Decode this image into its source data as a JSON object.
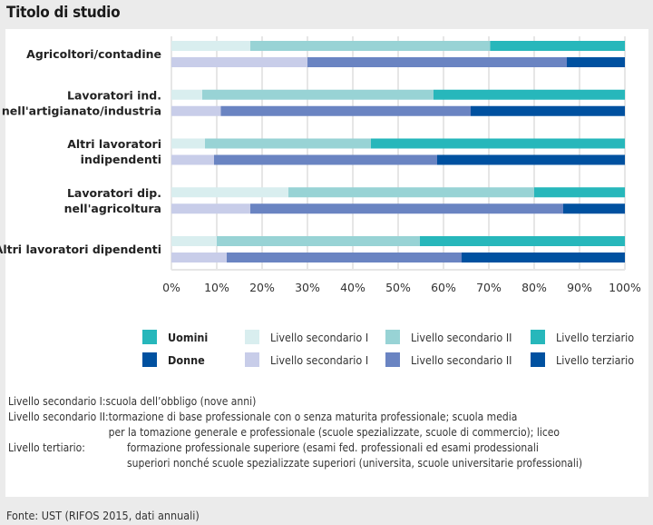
{
  "title": "Titolo di studio",
  "chart_data": {
    "type": "bar",
    "orientation": "horizontal",
    "stacked": true,
    "normalized": true,
    "categories": [
      "Agricoltori/contadine",
      "Lavoratori ind.\nnell'artigianato/industria",
      "Altri lavoratori\nindipendenti",
      "Lavoratori dip.\nnell'agricoltura",
      "Altri lavoratori dipendenti"
    ],
    "groups": [
      "Uomini",
      "Donne"
    ],
    "levels": [
      "Livello secondario I",
      "Livello secondario II",
      "Livello terziario"
    ],
    "series": [
      {
        "name": "Uomini - Livello secondario I",
        "group": "Uomini",
        "level": "Livello secondario I",
        "values": [
          17.4,
          6.8,
          7.4,
          25.8,
          10.0
        ]
      },
      {
        "name": "Uomini - Livello secondario II",
        "group": "Uomini",
        "level": "Livello secondario II",
        "values": [
          52.9,
          51.0,
          36.6,
          54.2,
          44.8
        ]
      },
      {
        "name": "Uomini - Livello terziario",
        "group": "Uomini",
        "level": "Livello terziario",
        "values": [
          29.7,
          42.2,
          56.0,
          20.0,
          45.2
        ]
      },
      {
        "name": "Donne - Livello secondario I",
        "group": "Donne",
        "level": "Livello secondario I",
        "values": [
          30.0,
          10.9,
          9.4,
          17.4,
          12.2
        ]
      },
      {
        "name": "Donne - Livello secondario II",
        "group": "Donne",
        "level": "Livello secondario II",
        "values": [
          57.2,
          55.1,
          49.2,
          69.0,
          51.8
        ]
      },
      {
        "name": "Donne - Livello terziario",
        "group": "Donne",
        "level": "Livello terziario",
        "values": [
          12.8,
          34.0,
          41.4,
          13.6,
          36.0
        ]
      }
    ],
    "colors": {
      "Uomini": [
        "#d9eeef",
        "#98d3d5",
        "#27b7bb"
      ],
      "Donne": [
        "#c8cde9",
        "#6a84c2",
        "#0051a0"
      ]
    },
    "xlim": [
      0,
      100
    ],
    "xticks": [
      "0%",
      "10%",
      "20%",
      "30%",
      "40%",
      "50%",
      "60%",
      "70%",
      "80%",
      "90%",
      "100%"
    ],
    "grid": true,
    "xlabel": "",
    "ylabel": "",
    "legend_position": "bottom"
  },
  "legend": {
    "groups": [
      {
        "label": "Uomini",
        "color": "#27b7bb"
      },
      {
        "label": "Donne",
        "color": "#0051a0"
      }
    ],
    "uomini_items": [
      {
        "label": "Livello secondario I",
        "color": "#d9eeef"
      },
      {
        "label": "Livello secondario II",
        "color": "#98d3d5"
      },
      {
        "label": "Livello terziario",
        "color": "#27b7bb"
      }
    ],
    "donne_items": [
      {
        "label": "Livello secondario I",
        "color": "#c8cde9"
      },
      {
        "label": "Livello secondario II",
        "color": "#6a84c2"
      },
      {
        "label": "Livello terziario",
        "color": "#0051a0"
      }
    ]
  },
  "notes": [
    {
      "term": "Livello secondario I:",
      "lines": [
        "scuola dell’obbligo (nove anni)"
      ]
    },
    {
      "term": "Livello secondario II:",
      "lines": [
        "tormazione di base professionale con o senza maturita professionale; scuola media",
        "per la tomazione generale e professionale (scuole spezializzate, scuole di commercio); liceo"
      ]
    },
    {
      "term": "Livello tertiario:",
      "lines": [
        "formazione professionale superiore (esami fed. professionali ed esami prodessionali",
        "superiori nonché scuole spezializzate superiori (universita, scuole universitarie professionali)"
      ]
    }
  ],
  "footer": "Fonte: UST (RIFOS 2015, dati annuali)"
}
